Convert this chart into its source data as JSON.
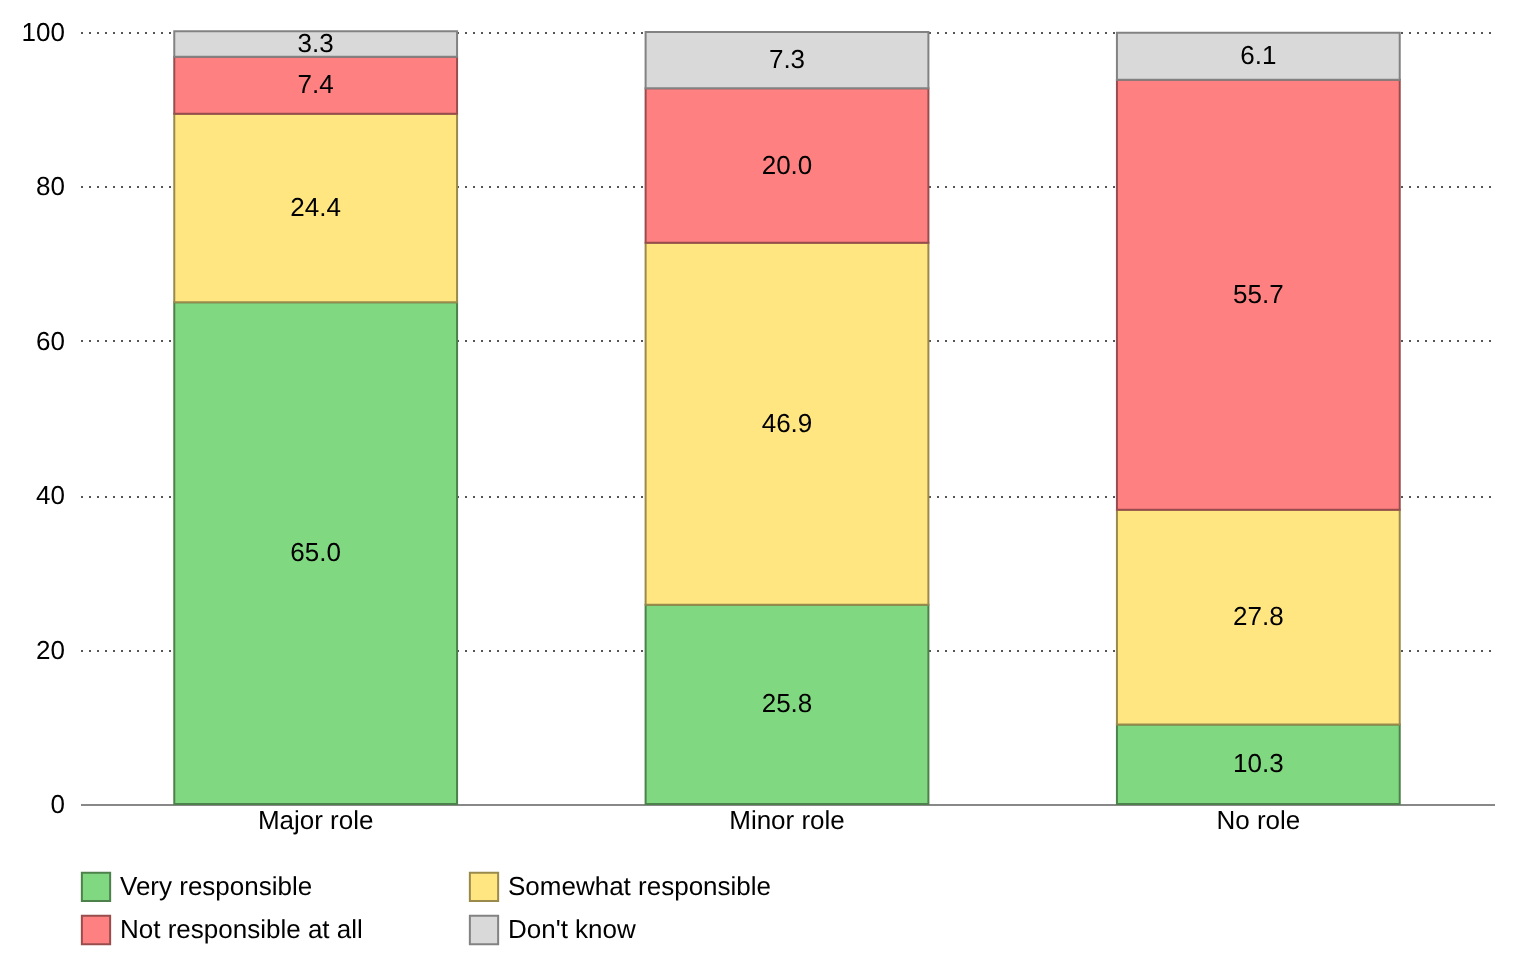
{
  "chart_data": {
    "type": "bar",
    "stacked": true,
    "categories": [
      "Major role",
      "Minor role",
      "No role"
    ],
    "series": [
      {
        "name": "Very responsible",
        "color": "#80d880",
        "values": [
          65.0,
          25.8,
          10.3
        ],
        "value_labels": [
          "65.0",
          "25.8",
          "10.3"
        ]
      },
      {
        "name": "Somewhat responsible",
        "color": "#ffe680",
        "values": [
          24.4,
          46.9,
          27.8
        ],
        "value_labels": [
          "24.4",
          "46.9",
          "27.8"
        ]
      },
      {
        "name": "Not responsible at all",
        "color": "#ff8080",
        "values": [
          7.4,
          20.0,
          55.7
        ],
        "value_labels": [
          "7.4",
          "20.0",
          "55.7"
        ]
      },
      {
        "name": "Don't know",
        "color": "#d9d9d9",
        "values": [
          3.3,
          7.3,
          6.1
        ],
        "value_labels": [
          "3.3",
          "7.3",
          "6.1"
        ]
      }
    ],
    "ylim": [
      0,
      100
    ],
    "yticks": [
      0,
      20,
      40,
      60,
      80,
      100
    ],
    "grid": "y",
    "legend": "bottom"
  }
}
